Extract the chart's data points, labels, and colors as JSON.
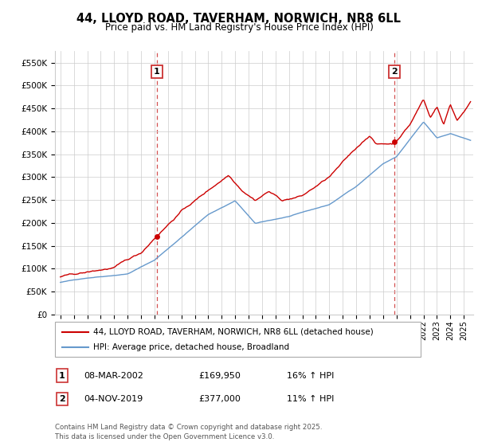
{
  "title_line1": "44, LLOYD ROAD, TAVERHAM, NORWICH, NR8 6LL",
  "title_line2": "Price paid vs. HM Land Registry's House Price Index (HPI)",
  "ylim": [
    0,
    575000
  ],
  "yticks": [
    0,
    50000,
    100000,
    150000,
    200000,
    250000,
    300000,
    350000,
    400000,
    450000,
    500000,
    550000
  ],
  "xmin": 1994.6,
  "xmax": 2025.7,
  "sale1_x": 2002.18,
  "sale1_y": 169950,
  "sale1_label": "1",
  "sale1_date": "08-MAR-2002",
  "sale1_price": "£169,950",
  "sale1_hpi": "16% ↑ HPI",
  "sale2_x": 2019.84,
  "sale2_y": 377000,
  "sale2_label": "2",
  "sale2_date": "04-NOV-2019",
  "sale2_price": "£377,000",
  "sale2_hpi": "11% ↑ HPI",
  "legend_entry1": "44, LLOYD ROAD, TAVERHAM, NORWICH, NR8 6LL (detached house)",
  "legend_entry2": "HPI: Average price, detached house, Broadland",
  "footer": "Contains HM Land Registry data © Crown copyright and database right 2025.\nThis data is licensed under the Open Government Licence v3.0.",
  "line_color_red": "#cc0000",
  "line_color_blue": "#6699cc",
  "vline_color": "#cc3333",
  "background_color": "#ffffff",
  "grid_color": "#cccccc"
}
